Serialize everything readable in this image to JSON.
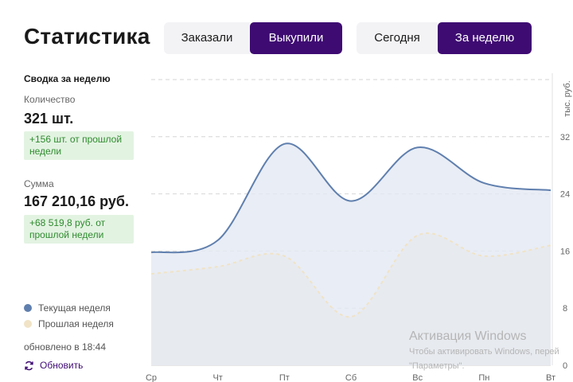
{
  "header": {
    "title": "Статистика",
    "metric_tabs": [
      "Заказали",
      "Выкупили"
    ],
    "metric_active_index": 1,
    "period_tabs": [
      "Сегодня",
      "За неделю"
    ],
    "period_active_index": 1
  },
  "summary": {
    "heading": "Сводка за неделю",
    "quantity_label": "Количество",
    "quantity_value": "321 шт.",
    "quantity_delta_line1": "+156 шт. от прошлой",
    "quantity_delta_line2": "недели",
    "sum_label": "Сумма",
    "sum_value": "167 210,16 руб.",
    "sum_delta_line1": "+68 519,8 руб. от",
    "sum_delta_line2": "прошлой недели"
  },
  "legend": {
    "current": "Текущая неделя",
    "previous": "Прошлая неделя"
  },
  "footer": {
    "updated": "обновлено в 18:44",
    "refresh": "Обновить"
  },
  "colors": {
    "accent": "#3e0b72",
    "current_line": "#5f7fae",
    "current_fill": "#e3e9f3",
    "previous_line": "#f0e3c6",
    "previous_fill": "#f5eedf",
    "delta_bg": "#e3f3e2",
    "delta_text": "#2e8b2e"
  },
  "watermark": {
    "title": "Активация Windows",
    "line1": "Чтобы активировать Windows, перей",
    "line2": "\"Параметры\"."
  },
  "chart_data": {
    "type": "area",
    "x": [
      "Ср",
      "Чт",
      "Пт",
      "Сб",
      "Вс",
      "Пн",
      "Вт"
    ],
    "ylabel": "тыс. руб.",
    "ylim": [
      0,
      40
    ],
    "yticks": [
      0,
      8,
      16,
      24,
      32
    ],
    "grid": true,
    "series": [
      {
        "name": "Текущая неделя",
        "values": [
          15.8,
          17.5,
          31,
          23,
          30.5,
          25.5,
          24.5
        ]
      },
      {
        "name": "Прошлая неделя",
        "values": [
          12.8,
          13.8,
          15.3,
          6.8,
          18.2,
          15.3,
          16.8
        ]
      }
    ]
  }
}
